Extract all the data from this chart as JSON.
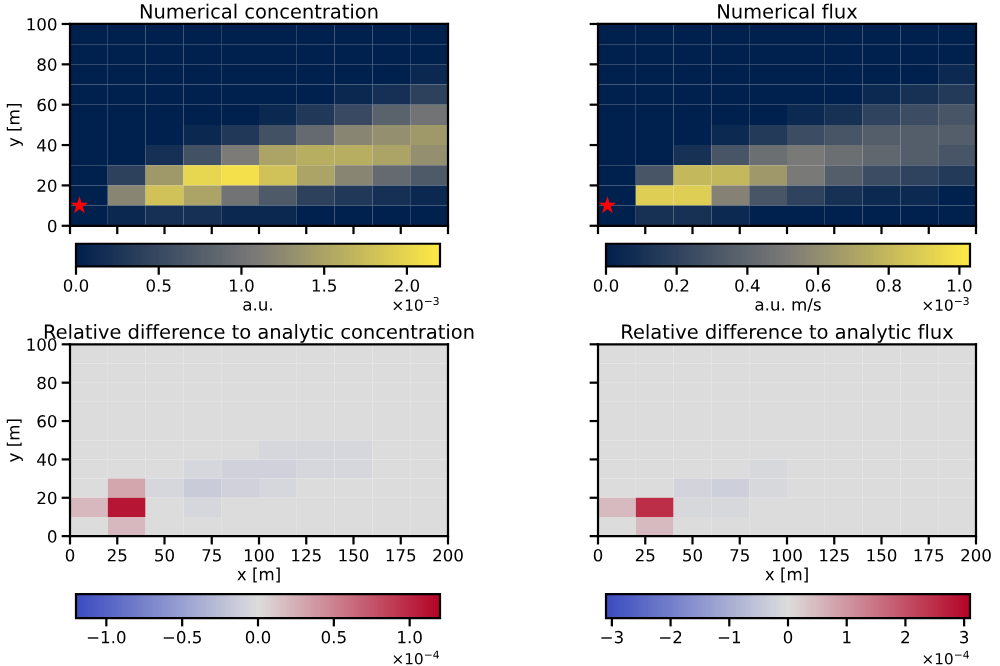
{
  "chart_data": [
    {
      "type": "heatmap",
      "title": "Numerical concentration",
      "ylabel": "y [m]",
      "clabel": "a.u.",
      "annotations": [
        "×10$^{−3}$"
      ],
      "x": [
        10,
        30,
        50,
        70,
        90,
        110,
        130,
        150,
        170,
        190
      ],
      "y": [
        95,
        85,
        75,
        65,
        55,
        45,
        35,
        25,
        15,
        5
      ],
      "xlim": [
        0,
        200
      ],
      "xticks": [
        0,
        25,
        50,
        75,
        100,
        125,
        150,
        175,
        200
      ],
      "ylim": [
        0,
        100
      ],
      "yticks": [
        0,
        20,
        40,
        60,
        80,
        100
      ],
      "tick_labels": "y",
      "colors": [
        "#00204d",
        "#7c7b78",
        "#ffea46"
      ],
      "clim": [
        0,
        2.2
      ],
      "cticks": [
        {
          "value": 0,
          "label": "0.0"
        },
        0.5,
        {
          "value": 1,
          "label": "1.0"
        },
        1.5,
        {
          "value": 2,
          "label": "2.0"
        }
      ],
      "cells": [
        [
          0,
          0,
          0,
          0,
          0,
          0,
          0,
          0,
          0,
          0
        ],
        [
          0,
          0,
          0,
          0,
          0,
          0,
          0,
          0,
          0,
          0
        ],
        [
          0,
          0,
          0,
          0,
          0,
          0,
          0,
          0,
          0,
          0.1
        ],
        [
          0,
          0,
          0,
          0,
          0,
          0,
          0,
          0.1,
          0.2,
          0.4
        ],
        [
          0,
          0,
          0,
          0,
          0,
          0.1,
          0.3,
          0.5,
          0.8,
          1.0
        ],
        [
          0,
          0,
          0,
          0.1,
          0.3,
          0.6,
          0.9,
          1.2,
          1.3,
          1.4
        ],
        [
          0,
          0,
          0.2,
          0.6,
          1.1,
          1.5,
          1.6,
          1.6,
          1.5,
          1.3
        ],
        [
          0,
          0.4,
          1.4,
          2.0,
          2.1,
          1.8,
          1.5,
          1.2,
          0.9,
          0.7
        ],
        [
          0,
          1.2,
          1.8,
          1.5,
          1.0,
          0.7,
          0.4,
          0.3,
          0.2,
          0.1
        ],
        [
          0,
          0.1,
          0.2,
          0.2,
          0.1,
          0.1,
          0,
          0,
          0,
          0
        ]
      ],
      "marker": "star",
      "series": [
        {
          "type": "scatter",
          "x": [
            5
          ],
          "values": [
            10
          ],
          "color": "#ff0000"
        }
      ]
    },
    {
      "type": "heatmap",
      "title": "Numerical flux",
      "clabel": "a.u. m/s",
      "annotations": [
        "×10$^{−3}$"
      ],
      "x": [
        10,
        30,
        50,
        70,
        90,
        110,
        130,
        150,
        170,
        190
      ],
      "y": [
        95,
        85,
        75,
        65,
        55,
        45,
        35,
        25,
        15,
        5
      ],
      "xlim": [
        0,
        200
      ],
      "xticks": [
        0,
        25,
        50,
        75,
        100,
        125,
        150,
        175,
        200
      ],
      "ylim": [
        0,
        100
      ],
      "yticks": [
        0,
        20,
        40,
        60,
        80,
        100
      ],
      "tick_labels": false,
      "colors": [
        "#00204d",
        "#7c7b78",
        "#ffea46"
      ],
      "clim": [
        0,
        1.03
      ],
      "cticks": [
        {
          "value": 0,
          "label": "0.0"
        },
        0.2,
        0.4,
        0.6,
        0.8,
        {
          "value": 1,
          "label": "1.0"
        }
      ],
      "cells": [
        [
          0,
          0,
          0,
          0,
          0,
          0,
          0,
          0,
          0,
          0
        ],
        [
          0,
          0,
          0,
          0,
          0,
          0,
          0,
          0,
          0,
          0
        ],
        [
          0,
          0,
          0,
          0,
          0,
          0,
          0,
          0,
          0,
          0.05
        ],
        [
          0,
          0,
          0,
          0,
          0,
          0,
          0,
          0.05,
          0.1,
          0.15
        ],
        [
          0,
          0,
          0,
          0,
          0,
          0.05,
          0.1,
          0.2,
          0.25,
          0.3
        ],
        [
          0,
          0,
          0,
          0.05,
          0.15,
          0.25,
          0.3,
          0.35,
          0.35,
          0.35
        ],
        [
          0,
          0,
          0.1,
          0.3,
          0.45,
          0.5,
          0.45,
          0.4,
          0.35,
          0.3
        ],
        [
          0,
          0.3,
          0.8,
          0.8,
          0.65,
          0.5,
          0.35,
          0.25,
          0.2,
          0.15
        ],
        [
          0,
          0.9,
          0.9,
          0.55,
          0.3,
          0.2,
          0.1,
          0.05,
          0.05,
          0
        ],
        [
          0,
          0.1,
          0.1,
          0.05,
          0,
          0,
          0,
          0,
          0,
          0
        ]
      ],
      "marker": "star",
      "series": [
        {
          "type": "scatter",
          "x": [
            5
          ],
          "values": [
            10
          ],
          "color": "#ff0000"
        }
      ]
    },
    {
      "type": "heatmap",
      "title": "Relative difference to analytic concentration",
      "xlabel": "x [m]",
      "ylabel": "y [m]",
      "annotations": [
        "×10$^{−4}$"
      ],
      "x": [
        10,
        30,
        50,
        70,
        90,
        110,
        130,
        150,
        170,
        190
      ],
      "y": [
        95,
        85,
        75,
        65,
        55,
        45,
        35,
        25,
        15,
        5
      ],
      "xlim": [
        0,
        200
      ],
      "xticks": [
        0,
        25,
        50,
        75,
        100,
        125,
        150,
        175,
        200
      ],
      "ylim": [
        0,
        100
      ],
      "yticks": [
        0,
        20,
        40,
        60,
        80,
        100
      ],
      "colors": [
        "#3b4cc0",
        "#dddddd",
        "#b40426"
      ],
      "clim": [
        -1.2,
        1.2
      ],
      "cticks": [
        {
          "value": -1.0,
          "label": "−1.0"
        },
        {
          "value": -0.5,
          "label": "−0.5"
        },
        {
          "value": 0,
          "label": "0.0"
        },
        0.5,
        {
          "value": 1,
          "label": "1.0"
        }
      ],
      "cells": [
        [
          0,
          0,
          0,
          0,
          0,
          0,
          0,
          0,
          0,
          0
        ],
        [
          0,
          0,
          0,
          0,
          0,
          0,
          0,
          0,
          0,
          0
        ],
        [
          0,
          0,
          0,
          0,
          0,
          0,
          0,
          0,
          0,
          0
        ],
        [
          0,
          0,
          0,
          0,
          0,
          0,
          0,
          0,
          0,
          0
        ],
        [
          0,
          0,
          0,
          0,
          0,
          0,
          0,
          0,
          0,
          0
        ],
        [
          0,
          0,
          0,
          0,
          0,
          -0.05,
          -0.05,
          -0.05,
          0,
          0
        ],
        [
          0,
          0,
          0,
          -0.05,
          -0.1,
          -0.1,
          -0.05,
          -0.05,
          0,
          0
        ],
        [
          0,
          0.3,
          -0.05,
          -0.15,
          -0.1,
          -0.05,
          0,
          0,
          0,
          0
        ],
        [
          0.2,
          1.1,
          0,
          -0.05,
          0,
          0,
          0,
          0,
          0,
          0
        ],
        [
          0,
          0.2,
          0,
          0,
          0,
          0,
          0,
          0,
          0,
          0
        ]
      ]
    },
    {
      "type": "heatmap",
      "title": "Relative difference to analytic flux",
      "xlabel": "x [m]",
      "annotations": [
        "×10$^{−4}$"
      ],
      "x": [
        10,
        30,
        50,
        70,
        90,
        110,
        130,
        150,
        170,
        190
      ],
      "y": [
        95,
        85,
        75,
        65,
        55,
        45,
        35,
        25,
        15,
        5
      ],
      "xlim": [
        0,
        200
      ],
      "xticks": [
        0,
        25,
        50,
        75,
        100,
        125,
        150,
        175,
        200
      ],
      "ylim": [
        0,
        100
      ],
      "yticks": [
        0,
        20,
        40,
        60,
        80,
        100
      ],
      "tick_labels": "x",
      "colors": [
        "#3b4cc0",
        "#dddddd",
        "#b40426"
      ],
      "clim": [
        -3.1,
        3.1
      ],
      "cticks": [
        {
          "value": -3,
          "label": "−3"
        },
        {
          "value": -2,
          "label": "−2"
        },
        {
          "value": -1,
          "label": "−1"
        },
        0,
        1,
        2,
        3
      ],
      "cells": [
        [
          0,
          0,
          0,
          0,
          0,
          0,
          0,
          0,
          0,
          0
        ],
        [
          0,
          0,
          0,
          0,
          0,
          0,
          0,
          0,
          0,
          0
        ],
        [
          0,
          0,
          0,
          0,
          0,
          0,
          0,
          0,
          0,
          0
        ],
        [
          0,
          0,
          0,
          0,
          0,
          0,
          0,
          0,
          0,
          0
        ],
        [
          0,
          0,
          0,
          0,
          0,
          0,
          0,
          0,
          0,
          0
        ],
        [
          0,
          0,
          0,
          0,
          0,
          0,
          0,
          0,
          0,
          0
        ],
        [
          0,
          0,
          0,
          0,
          -0.1,
          0,
          0,
          0,
          0,
          0
        ],
        [
          0,
          0,
          -0.2,
          -0.3,
          -0.1,
          0,
          0,
          0,
          0,
          0
        ],
        [
          0.5,
          2.5,
          -0.1,
          -0.1,
          0,
          0,
          0,
          0,
          0,
          0
        ],
        [
          0,
          0.5,
          0,
          0,
          0,
          0,
          0,
          0,
          0,
          0
        ]
      ]
    }
  ]
}
